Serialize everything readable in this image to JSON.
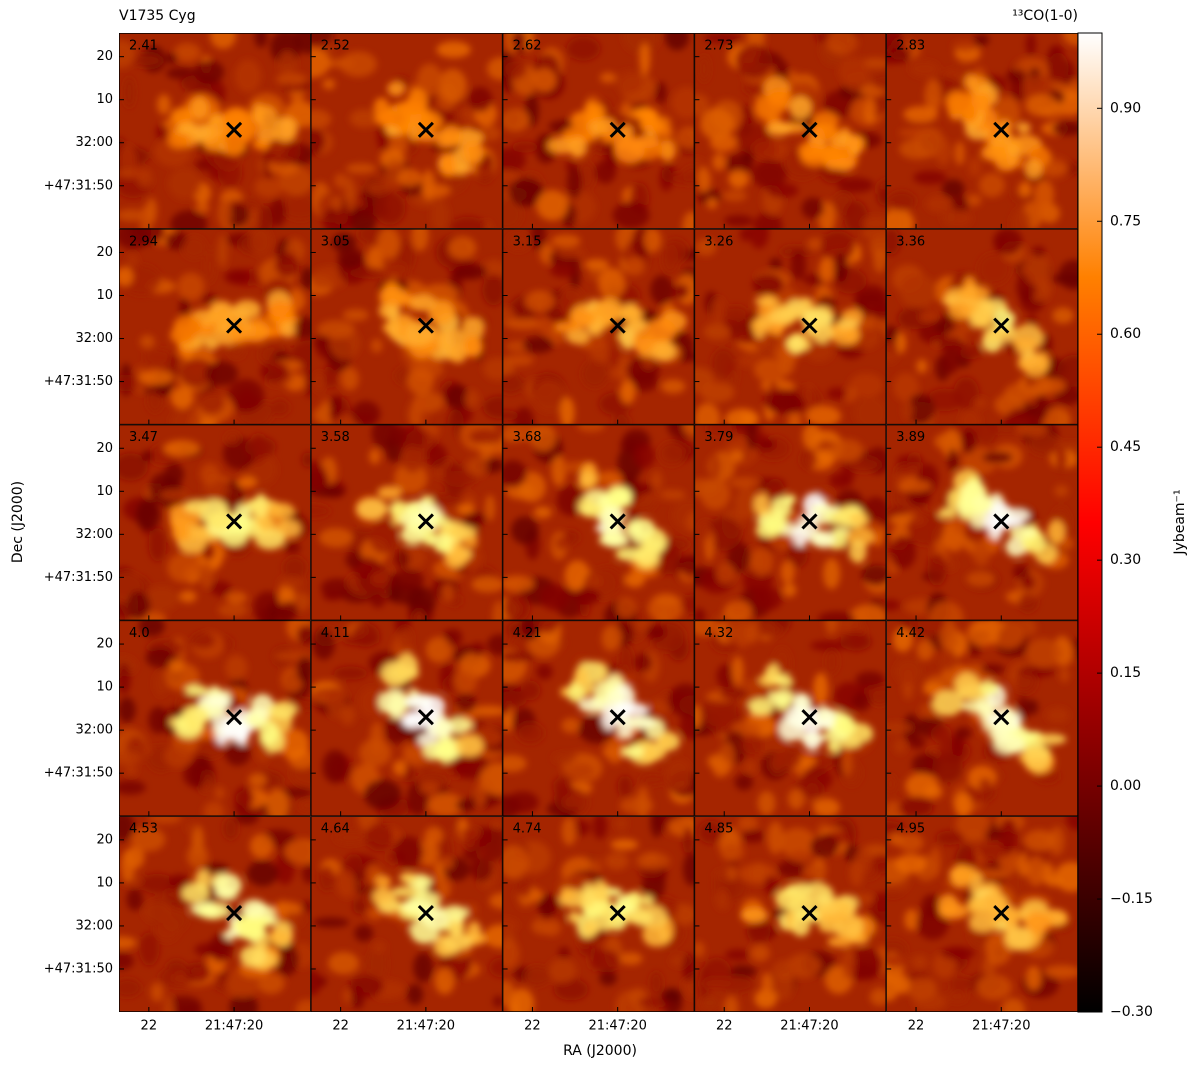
{
  "chart_data": {
    "type": "channel_map",
    "title": "V1735 Cyg",
    "line_label": "¹³CO(1-0)",
    "xlabel": "RA (J2000)",
    "ylabel": "Dec (J2000)",
    "colorbar_label": "Jybeam⁻¹",
    "channels": [
      "2.41",
      "2.52",
      "2.62",
      "2.73",
      "2.83",
      "2.94",
      "3.05",
      "3.15",
      "3.26",
      "3.36",
      "3.47",
      "3.58",
      "3.68",
      "3.79",
      "3.89",
      "4.0",
      "4.11",
      "4.21",
      "4.32",
      "4.42",
      "4.53",
      "4.64",
      "4.74",
      "4.85",
      "4.95"
    ],
    "columns": 5,
    "xlim": [
      22.7,
      18.2
    ],
    "xticks": [
      22,
      {
        "value": 20,
        "label": "21:47:20"
      }
    ],
    "ylim": [
      -20,
      25.5
    ],
    "yticks": [
      20,
      10,
      {
        "value": 0,
        "label": "32:00"
      },
      {
        "value": -10,
        "label": "+47:31:50"
      }
    ],
    "source": {
      "x": 20,
      "y": 3
    },
    "clim": [
      -0.3,
      1.0
    ],
    "cticks": [
      {
        "value": -0.3,
        "label": "−0.30"
      },
      {
        "value": -0.15,
        "label": "−0.15"
      },
      {
        "value": 0,
        "label": "0.00"
      },
      {
        "value": 0.15,
        "label": "0.15"
      },
      {
        "value": 0.3,
        "label": "0.30"
      },
      {
        "value": 0.45,
        "label": "0.45"
      },
      {
        "value": 0.6,
        "label": "0.60"
      },
      {
        "value": 0.75,
        "label": "0.75"
      },
      {
        "value": 0.9,
        "label": "0.90"
      }
    ]
  }
}
